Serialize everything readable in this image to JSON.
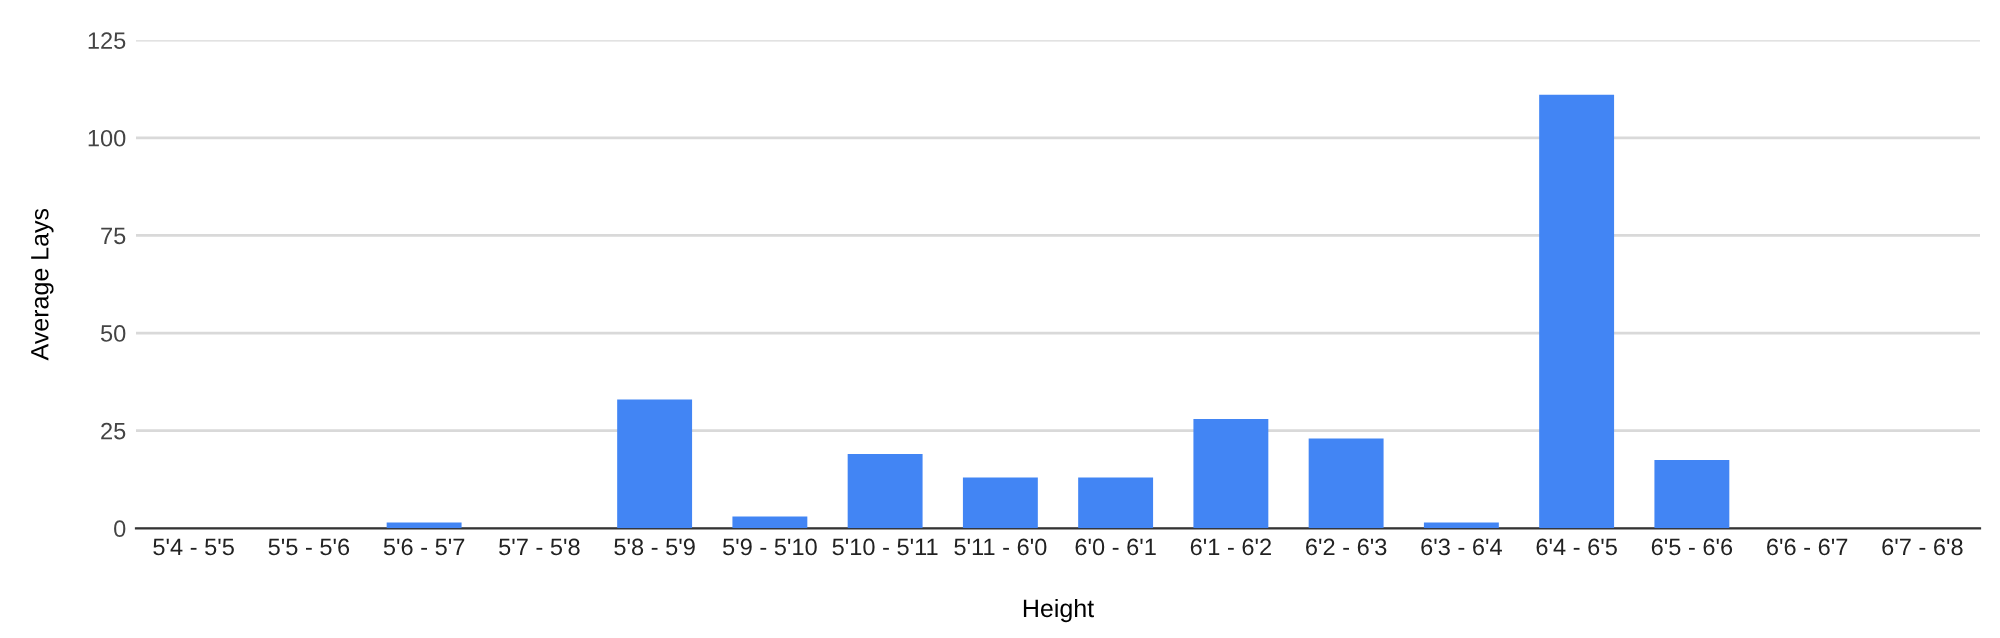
{
  "chart_data": {
    "type": "bar",
    "xlabel": "Height",
    "ylabel": "Average Lays",
    "categories": [
      "5'4 - 5'5",
      "5'5 - 5'6",
      "5'6 - 5'7",
      "5'7 - 5'8",
      "5'8 - 5'9",
      "5'9 - 5'10",
      "5'10 - 5'11",
      "5'11 - 6'0",
      "6'0 - 6'1",
      "6'1 - 6'2",
      "6'2 - 6'3",
      "6'3 - 6'4",
      "6'4 - 6'5",
      "6'5 - 6'6",
      "6'6 - 6'7",
      "6'7 - 6'8"
    ],
    "values": [
      0,
      0,
      1.5,
      0,
      33,
      3,
      19,
      13,
      13,
      28,
      23,
      1.5,
      111,
      17.5,
      0,
      0
    ],
    "color": "#4285f4",
    "ylim": [
      0,
      125
    ],
    "yticks": [
      0,
      25,
      50,
      75,
      100,
      125
    ],
    "grid": "y",
    "legend": false
  }
}
